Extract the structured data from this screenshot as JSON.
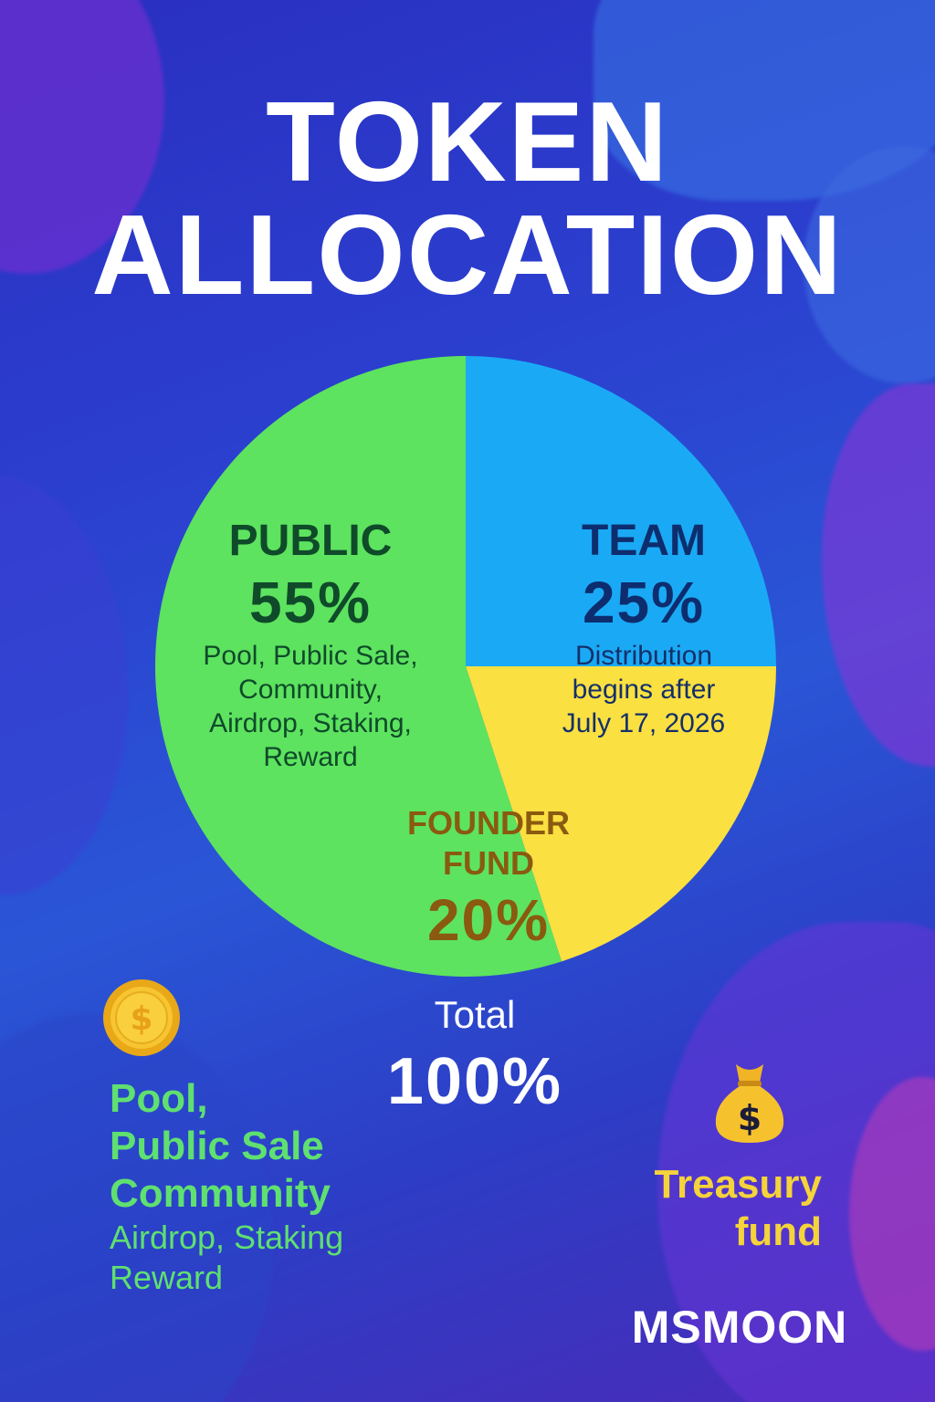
{
  "header": {
    "title_line1": "TOKEN",
    "title_line2": "ALLOCATION"
  },
  "chart_data": {
    "type": "pie",
    "slices": [
      {
        "name": "PUBLIC",
        "value": 55,
        "value_label": "55%",
        "color": "#5de35f",
        "description": [
          "Pool, Public Sale,",
          "Community,",
          "Airdrop, Staking,",
          "Reward"
        ]
      },
      {
        "name": "TEAM",
        "value": 25,
        "value_label": "25%",
        "color": "#1aaaf5",
        "description": [
          "Distribution",
          "begins after",
          "July 17, 2026"
        ]
      },
      {
        "name_lines": [
          "FOUNDER",
          "FUND"
        ],
        "value": 20,
        "value_label": "20%",
        "color": "#fbe041"
      }
    ],
    "total_label": "Total",
    "total_value": "100%"
  },
  "pool_section": {
    "icon": "coin-icon",
    "lines_big": [
      "Pool,",
      "Public Sale",
      "Community"
    ],
    "lines_small": [
      "Airdrop, Staking",
      "Reward"
    ],
    "color": "#5fe070"
  },
  "treasury_section": {
    "icon": "money-bag-icon",
    "lines": [
      "Treasury",
      "fund"
    ],
    "color": "#f5d33a"
  },
  "brand": "MSMOON"
}
